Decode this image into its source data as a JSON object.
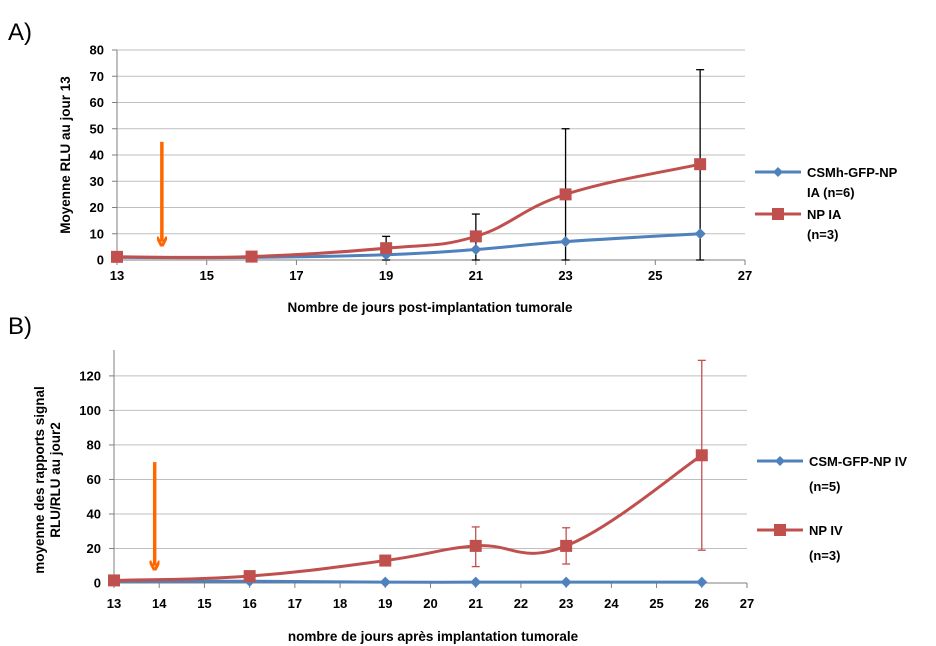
{
  "chart_data": [
    {
      "panel_label": "A)",
      "type": "line",
      "xlabel": "Nombre de jours post-implantation tumorale",
      "ylabel": "Moyenne RLU au jour 13",
      "xlim": [
        13,
        27
      ],
      "ylim": [
        0,
        80
      ],
      "xticks": [
        13,
        15,
        17,
        19,
        21,
        23,
        25,
        27
      ],
      "yticks": [
        0,
        10,
        20,
        30,
        40,
        50,
        60,
        70,
        80
      ],
      "grid": true,
      "legend_position": "right",
      "annotation": {
        "type": "arrow",
        "x": 14,
        "y_from": 45,
        "y_to": 7,
        "color": "#ff6600"
      },
      "series": [
        {
          "legend": [
            "CSMh-GFP-NP",
            "IA (n=6)"
          ],
          "color": "#4f81bd",
          "marker": "diamond",
          "x": [
            13,
            16,
            19,
            21,
            23,
            26
          ],
          "y": [
            1,
            1,
            2,
            4,
            7,
            10
          ],
          "error": [
            0,
            0,
            0,
            0,
            0,
            0
          ]
        },
        {
          "legend": [
            "NP IA",
            "(n=3)"
          ],
          "color": "#c0504d",
          "marker": "square",
          "x": [
            13,
            16,
            19,
            21,
            23,
            26
          ],
          "y": [
            1.2,
            1.3,
            4.5,
            9,
            25,
            36.5
          ],
          "error_color": "#000000",
          "err_plus": [
            0,
            0,
            4.5,
            8.5,
            25,
            36
          ],
          "err_minus": [
            0,
            0,
            4.5,
            9,
            25,
            36.5
          ]
        }
      ]
    },
    {
      "panel_label": "B)",
      "type": "line",
      "xlabel": "nombre de jours après implantation tumorale",
      "ylabel": [
        "moyenne des rapports signal",
        "RLU/RLU au jour2"
      ],
      "xlim": [
        13,
        27
      ],
      "ylim": [
        0,
        135
      ],
      "xticks": [
        13,
        14,
        15,
        16,
        17,
        18,
        19,
        20,
        21,
        22,
        23,
        24,
        25,
        26,
        27
      ],
      "yticks": [
        0,
        20,
        40,
        60,
        80,
        100,
        120
      ],
      "grid": true,
      "legend_position": "right",
      "annotation": {
        "type": "arrow",
        "x": 13.9,
        "y_from": 70,
        "y_to": 10,
        "color": "#ff6600"
      },
      "series": [
        {
          "legend": [
            "CSM-GFP-NP IV",
            "(n=5)"
          ],
          "color": "#4f81bd",
          "marker": "diamond",
          "x": [
            13,
            16,
            19,
            21,
            23,
            26
          ],
          "y": [
            1,
            1,
            0.5,
            0.5,
            0.5,
            0.5
          ]
        },
        {
          "legend": [
            "NP IV",
            "(n=3)"
          ],
          "color": "#c0504d",
          "marker": "square",
          "x": [
            13,
            16,
            19,
            21,
            23,
            26
          ],
          "y": [
            1.5,
            4,
            13,
            21.5,
            21.5,
            74
          ],
          "error_color": "#c0504d",
          "err_plus": [
            0,
            0,
            3,
            11,
            10.5,
            55
          ],
          "err_minus": [
            0,
            0,
            3,
            12,
            10.5,
            55
          ]
        }
      ]
    }
  ]
}
